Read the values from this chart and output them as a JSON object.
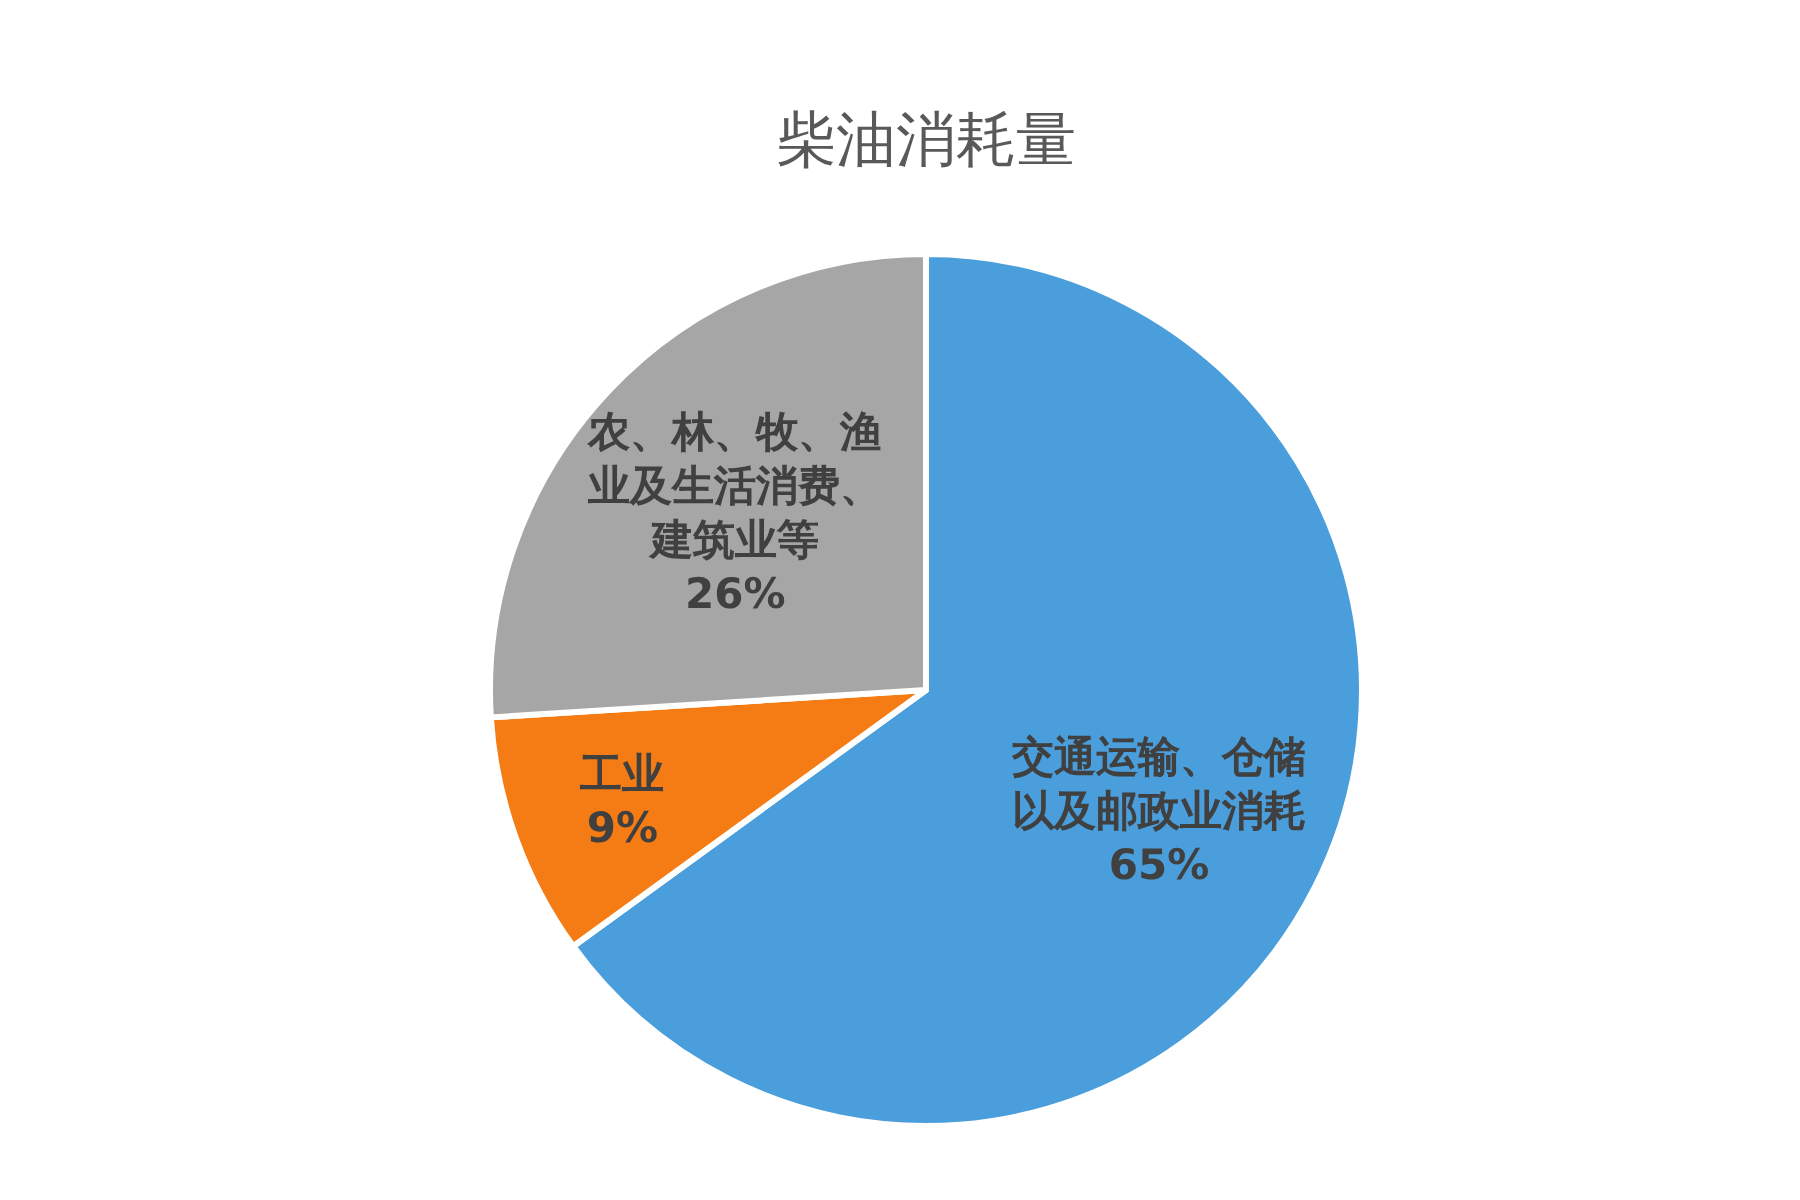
{
  "chart_data": {
    "type": "pie",
    "title": "柴油消耗量",
    "categories": [
      "交通运输、仓储以及邮政业消耗",
      "工业",
      "农、林、牧、渔业及生活消费、建筑业等"
    ],
    "values": [
      65,
      9,
      26
    ],
    "value_labels": [
      "65%",
      "9%",
      "26%"
    ],
    "colors": [
      "#4a9edc",
      "#f57c14",
      "#a6a6a6"
    ]
  }
}
